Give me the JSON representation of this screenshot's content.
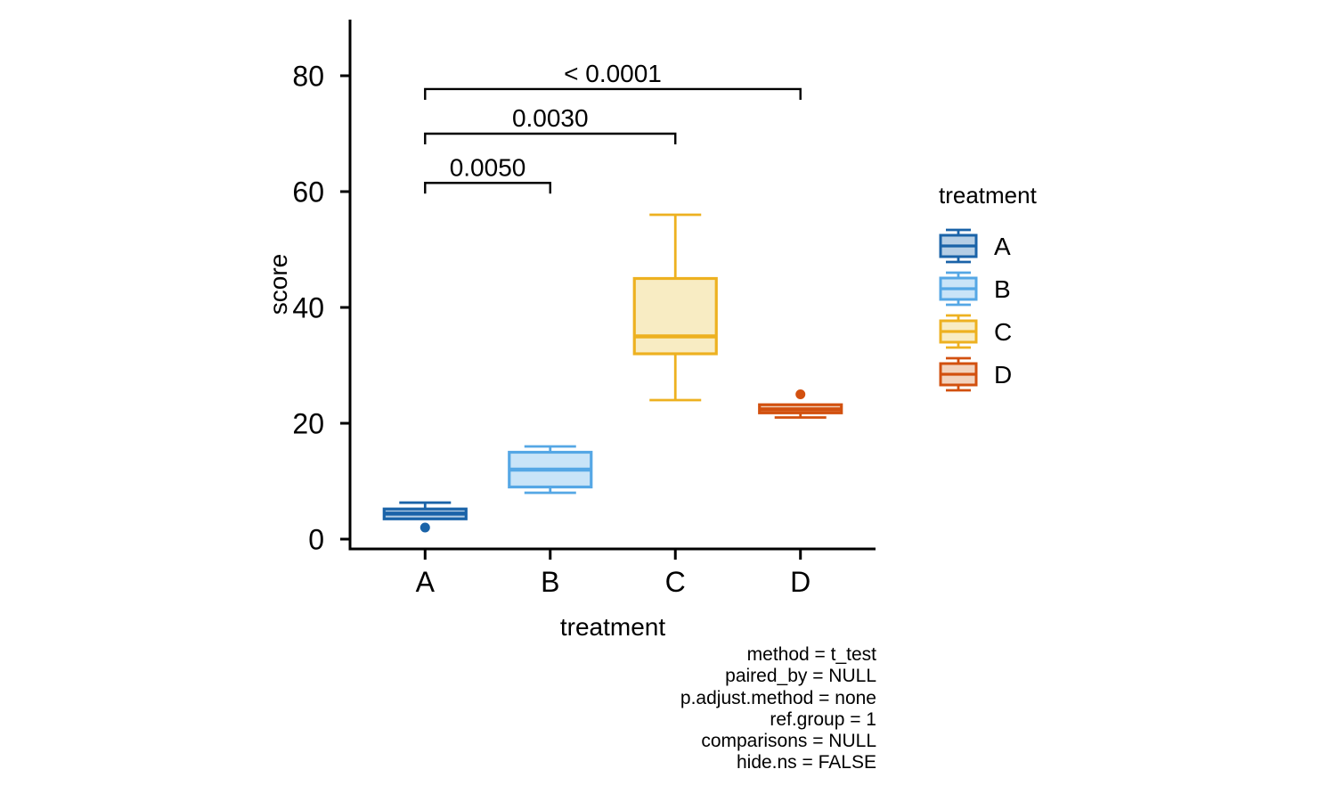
{
  "chart_data": {
    "type": "box",
    "title": "",
    "xlabel": "treatment",
    "ylabel": "score",
    "yticks": [
      0,
      20,
      40,
      60,
      80
    ],
    "ylim": [
      -1.7,
      89.7
    ],
    "grid": false,
    "categories": [
      "A",
      "B",
      "C",
      "D"
    ],
    "groups": [
      {
        "name": "A",
        "stroke": "#1A63A8",
        "fill": "#B5CEE5",
        "whisker_low": 3.5,
        "q1": 3.5,
        "median": 4.4,
        "q3": 5.2,
        "whisker_high": 6.3,
        "outliers": [
          2
        ]
      },
      {
        "name": "B",
        "stroke": "#55A7E5",
        "fill": "#C9E4F8",
        "whisker_low": 8,
        "q1": 9,
        "median": 12,
        "q3": 15,
        "whisker_high": 16,
        "outliers": []
      },
      {
        "name": "C",
        "stroke": "#EDB120",
        "fill": "#F8ECC3",
        "whisker_low": 24,
        "q1": 32,
        "median": 35,
        "q3": 45,
        "whisker_high": 56,
        "outliers": []
      },
      {
        "name": "D",
        "stroke": "#D2500F",
        "fill": "#F2D3BE",
        "whisker_low": 21,
        "q1": 21.8,
        "median": 22.4,
        "q3": 23.2,
        "whisker_high": 23.2,
        "outliers": [
          25
        ]
      }
    ],
    "comparisons": [
      {
        "group1": "A",
        "group2": "B",
        "p_label": "0.0050",
        "bar_y": 61.5
      },
      {
        "group1": "A",
        "group2": "C",
        "p_label": "0.0030",
        "bar_y": 70.0
      },
      {
        "group1": "A",
        "group2": "D",
        "p_label": "< 0.0001",
        "bar_y": 77.7
      }
    ],
    "legend": {
      "title": "treatment",
      "position": "right",
      "entries": [
        "A",
        "B",
        "C",
        "D"
      ]
    },
    "caption_lines": [
      "method = t_test",
      "paired_by = NULL",
      "p.adjust.method = none",
      "ref.group = 1",
      "comparisons = NULL",
      "hide.ns = FALSE"
    ],
    "colors": {
      "axis": "#000000",
      "bracket": "#000000",
      "text": "#000000"
    }
  }
}
